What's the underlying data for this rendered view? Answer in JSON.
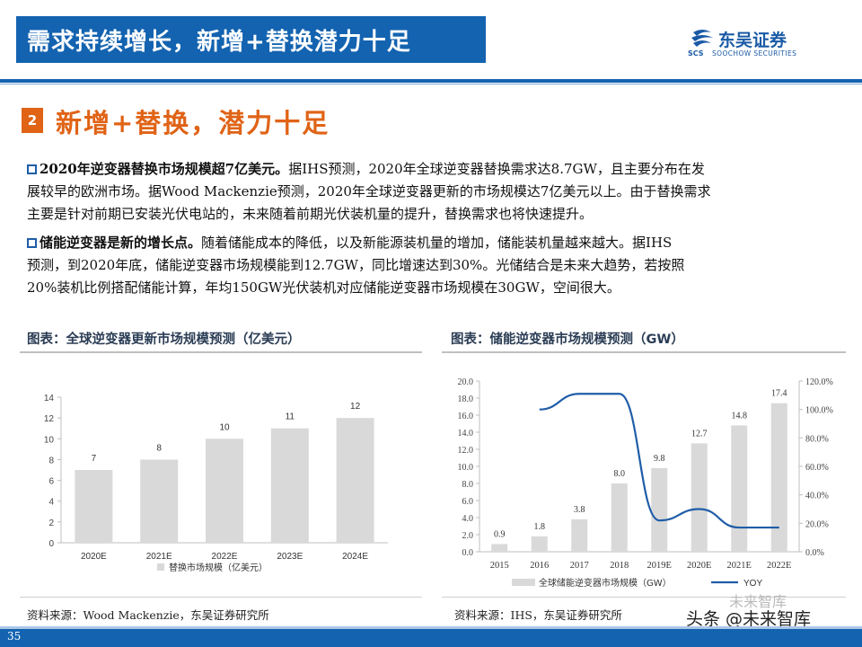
{
  "header": {
    "title": "需求持续增长，新增+替换潜力十足",
    "logo_cn": "东吴证券",
    "logo_en": "SOOCHOW SECURITIES",
    "logo_mark": "SCS"
  },
  "section": {
    "number": "2",
    "title": "新增+替换，潜力十足"
  },
  "paragraphs": [
    {
      "lead": "2020年逆变器替换市场规模超7亿美元。",
      "lines": [
        "据IHS预测，2020年全球逆变器替换需求达8.7GW，且主要分布在发",
        "展较早的欧洲市场。据Wood Mackenzie预测，2020年全球逆变器更新的市场规模达7亿美元以上。由于替换需求",
        "主要是针对前期已安装光伏电站的，未来随着前期光伏装机量的提升，替换需求也将快速提升。"
      ]
    },
    {
      "lead": "储能逆变器是新的增长点。",
      "lines": [
        "随着储能成本的降低，以及新能源装机量的增加，储能装机量越来越大。据IHS",
        "预测，到2020年底，储能逆变器市场规模能到12.7GW，同比增速达到30%。光储结合是未来大趋势，若按照",
        "20%装机比例搭配储能计算，年均150GW光伏装机对应储能逆变器市场规模在30GW，空间很大。"
      ]
    }
  ],
  "left_chart": {
    "heading": "图表：全球逆变器更新市场规模预测（亿美元）",
    "source": "资料来源：Wood Mackenzie，东吴证券研究所"
  },
  "right_chart": {
    "heading": "图表：储能逆变器市场规模预测（GW）",
    "source": "资料来源：IHS，东吴证券研究所"
  },
  "chart_data": [
    {
      "type": "bar",
      "categories": [
        "2020E",
        "2021E",
        "2022E",
        "2023E",
        "2024E"
      ],
      "series": [
        {
          "name": "替换市场规模（亿美元）",
          "values": [
            7,
            8,
            10,
            11,
            12
          ]
        }
      ],
      "ylim": [
        0,
        14
      ],
      "yticks": [
        0,
        2,
        4,
        6,
        8,
        10,
        12,
        14
      ],
      "value_labels": [
        "7",
        "8",
        "10",
        "11",
        "12"
      ],
      "legend": "bottom",
      "colors": {
        "bar": "#d9d9d9"
      }
    },
    {
      "type": "bar",
      "categories": [
        "2015",
        "2016",
        "2017",
        "2018",
        "2019E",
        "2020E",
        "2021E",
        "2022E"
      ],
      "series": [
        {
          "name": "全球储能逆变器市场规模（GW）",
          "values": [
            0.9,
            1.8,
            3.8,
            8.0,
            9.8,
            12.7,
            14.8,
            17.4
          ],
          "axis": "left"
        },
        {
          "name": "YOY",
          "type": "line",
          "values": [
            null,
            100,
            111,
            111,
            22,
            30,
            17,
            17
          ],
          "axis": "right"
        }
      ],
      "value_labels": [
        "0.9",
        "1.8",
        "3.8",
        "8.0",
        "9.8",
        "12.7",
        "14.8",
        "17.4"
      ],
      "ylim": [
        0,
        20
      ],
      "yticks": [
        "0.0",
        "2.0",
        "4.0",
        "6.0",
        "8.0",
        "10.0",
        "12.0",
        "14.0",
        "16.0",
        "18.0",
        "20.0"
      ],
      "y2lim": [
        0,
        120
      ],
      "y2ticks": [
        "0.0%",
        "20.0%",
        "40.0%",
        "60.0%",
        "80.0%",
        "100.0%",
        "120.0%"
      ],
      "legend": "bottom",
      "colors": {
        "bar": "#d9d9d9",
        "line": "#1f5da8"
      }
    }
  ],
  "footer": {
    "page_number": "35",
    "watermark": "头条 @未来智库",
    "watermark_faint": "未来智库"
  }
}
